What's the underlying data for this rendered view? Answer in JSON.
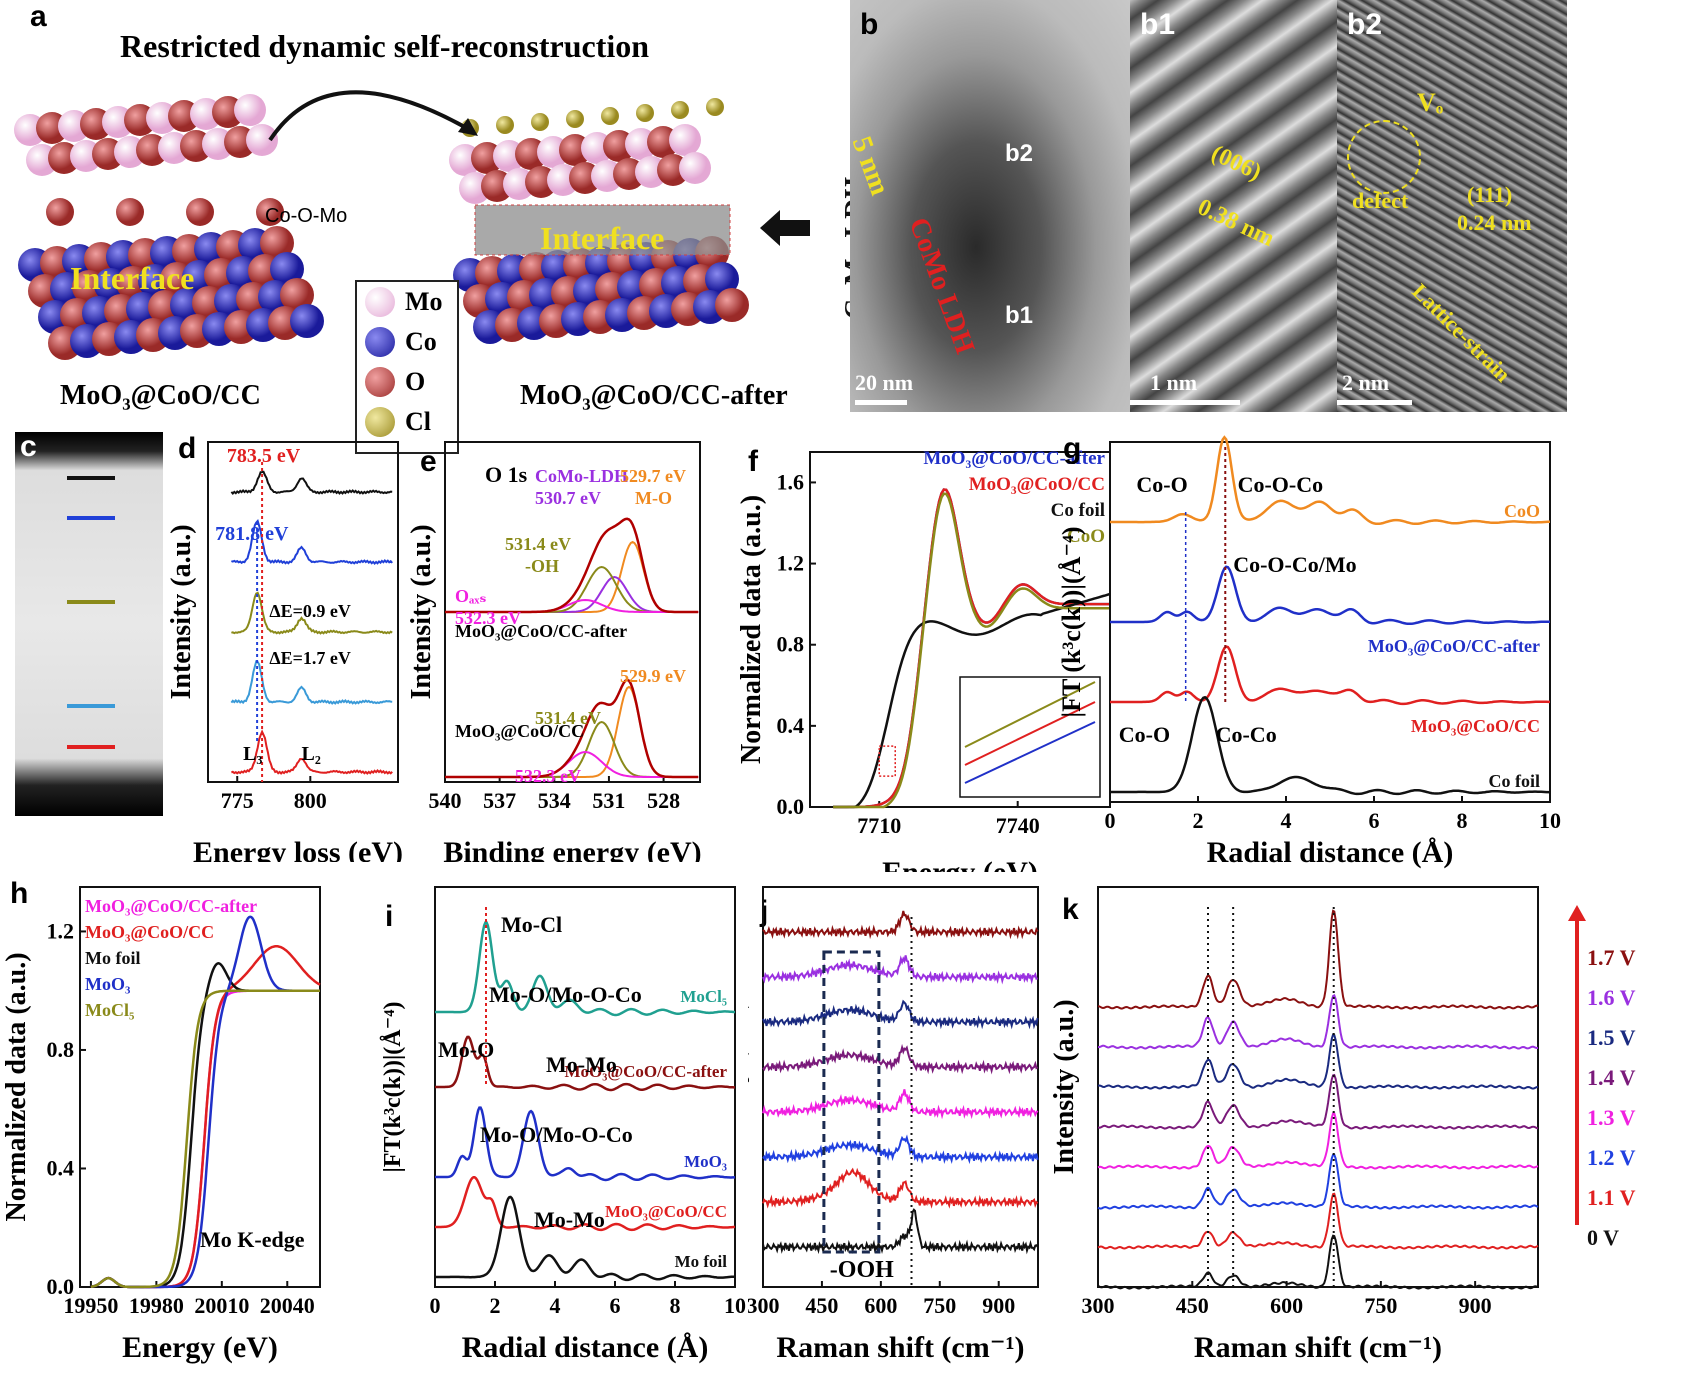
{
  "panel_letters": {
    "a": "a",
    "b": "b",
    "b1": "b1",
    "b2": "b2",
    "c": "c",
    "d": "d",
    "e": "e",
    "f": "f",
    "g": "g",
    "h": "h",
    "i": "i",
    "j": "j",
    "k": "k"
  },
  "panel_a": {
    "title": "Restricted dynamic self-reconstruction",
    "left_label": "MoO₃@CoO/CC",
    "right_label": "MoO₃@CoO/CC-after",
    "interface_left": "Interface",
    "interface_right": "Interface",
    "bond_label": "Co-O-Mo",
    "arrow_label": "CoMo LDH",
    "legend": [
      {
        "label": "Mo",
        "color": "#e8b6d8"
      },
      {
        "label": "Co",
        "color": "#2b2bb8"
      },
      {
        "label": "O",
        "color": "#b8433f"
      },
      {
        "label": "Cl",
        "color": "#b5a43d"
      }
    ]
  },
  "panel_b": {
    "thickness": "5 nm",
    "ldh_label": "CoMo LDH",
    "b1_box": "b1",
    "b2_box": "b2",
    "scale": "20 nm"
  },
  "panel_b1": {
    "plane": "(006)",
    "spacing": "0.38 nm",
    "scale": "1 nm"
  },
  "panel_b2": {
    "vo": "Vₒ",
    "defect": "defect",
    "plane": "(111)",
    "spacing": "0.24 nm",
    "strain": "Lattice-strain",
    "scale": "2 nm"
  },
  "chart_data": [
    {
      "panel": "d",
      "type": "line",
      "xlabel": "Energy loss (eV)",
      "ylabel": "Intensity (a.u.)",
      "xlim": [
        765,
        830
      ],
      "xticks": [
        775,
        800
      ],
      "annotations": [
        "783.5 eV",
        "781.8 eV",
        "ΔE=0.9 eV",
        "ΔE=1.7 eV",
        "L₃",
        "L₂"
      ],
      "series_colors": [
        "#111111",
        "#2040d8",
        "#8a8a1a",
        "#3a9ad8",
        "#e02020"
      ]
    },
    {
      "panel": "e",
      "type": "line",
      "title": "O 1s",
      "xlabel": "Binding energy (eV)",
      "ylabel": "Intensity (a.u.)",
      "xlim": [
        540,
        526
      ],
      "xticks": [
        540,
        537,
        534,
        531,
        528
      ],
      "labels": [
        "MoO₃@CoO/CC-after",
        "MoO₃@CoO/CC"
      ],
      "annotations": [
        "CoMo-LDH",
        "530.7 eV",
        "529.7 eV",
        "M-O",
        "531.4 eV",
        "-OH",
        "Oₐₓₛ",
        "532.3 eV",
        "529.9 eV",
        "531.4 eV",
        "532.3 eV"
      ]
    },
    {
      "panel": "f",
      "type": "line",
      "xlabel": "Energy (eV)",
      "ylabel": "Normalized data (a.u.)",
      "xlim": [
        7695,
        7760
      ],
      "ylim": [
        0.0,
        1.75
      ],
      "xticks": [
        7710,
        7740
      ],
      "yticks": [
        0.0,
        0.4,
        0.8,
        1.2,
        1.6
      ],
      "series": [
        {
          "name": "MoO₃@CoO/CC-after",
          "color": "#2030c8"
        },
        {
          "name": "MoO₃@CoO/CC",
          "color": "#e02020"
        },
        {
          "name": "Co foil",
          "color": "#111111"
        },
        {
          "name": "CoO",
          "color": "#8a8a1a"
        }
      ]
    },
    {
      "panel": "g",
      "type": "line",
      "xlabel": "Radial distance (Å)",
      "ylabel": "|FT (k³c(k))|(Å⁻⁴)",
      "xlim": [
        0,
        10
      ],
      "xticks": [
        0,
        2,
        4,
        6,
        8,
        10
      ],
      "series": [
        {
          "name": "CoO",
          "color": "#f08a20"
        },
        {
          "name": "MoO₃@CoO/CC-after",
          "color": "#2030c8"
        },
        {
          "name": "MoO₃@CoO/CC",
          "color": "#e02020"
        },
        {
          "name": "Co foil",
          "color": "#111111"
        }
      ],
      "annotations": [
        "Co-O",
        "Co-O-Co",
        "Co-O-Co/Mo",
        "Co-O",
        "Co-Co"
      ]
    },
    {
      "panel": "h",
      "type": "line",
      "xlabel": "Energy (eV)",
      "ylabel": "Normalized data (a.u.)",
      "xlim": [
        19945,
        20055
      ],
      "ylim": [
        0.0,
        1.35
      ],
      "xticks": [
        19950,
        19980,
        20010,
        20040
      ],
      "yticks": [
        0.0,
        0.4,
        0.8,
        1.2
      ],
      "series": [
        {
          "name": "MoO₃@CoO/CC-after",
          "color": "#f020e0"
        },
        {
          "name": "MoO₃@CoO/CC",
          "color": "#e02020"
        },
        {
          "name": "Mo foil",
          "color": "#111111"
        },
        {
          "name": "MoO₃",
          "color": "#2030c8"
        },
        {
          "name": "MoCl₅",
          "color": "#8a8a1a"
        }
      ],
      "annotations": [
        "Mo K-edge"
      ]
    },
    {
      "panel": "i",
      "type": "line",
      "xlabel": "Radial distance (Å)",
      "ylabel": "|FT(k³c(k))|(Å⁻⁴)",
      "xlim": [
        0,
        10
      ],
      "xticks": [
        0,
        2,
        4,
        6,
        8,
        10
      ],
      "series": [
        {
          "name": "MoCl₅",
          "color": "#20a090"
        },
        {
          "name": "MoO₃@CoO/CC-after",
          "color": "#8a1010"
        },
        {
          "name": "MoO₃",
          "color": "#2030c8"
        },
        {
          "name": "MoO₃@CoO/CC",
          "color": "#e02020"
        },
        {
          "name": "Mo foil",
          "color": "#111111"
        }
      ],
      "annotations": [
        "Mo-Cl",
        "Mo-O/Mo-O-Co",
        "Mo-O",
        "Mo-Mo",
        "Mo-O/Mo-O-Co",
        "Mo-Mo"
      ]
    },
    {
      "panel": "j",
      "type": "line",
      "xlabel": "Raman shift (cm⁻¹)",
      "ylabel": "Intensity (a.u.)",
      "xlim": [
        300,
        1000
      ],
      "xticks": [
        300,
        450,
        600,
        750,
        900
      ],
      "annotations": [
        "-OOH"
      ],
      "series_colors": [
        "#8a1010",
        "#9a30e0",
        "#1a2a80",
        "#7a1a7a",
        "#f020e0",
        "#2040e0",
        "#e02020",
        "#111111"
      ]
    },
    {
      "panel": "k",
      "type": "line",
      "xlabel": "Raman shift (cm⁻¹)",
      "ylabel": "Intensity (a.u.)",
      "xlim": [
        300,
        1000
      ],
      "xticks": [
        300,
        450,
        600,
        750,
        900
      ],
      "series": [
        {
          "name": "1.7 V",
          "color": "#8a1010"
        },
        {
          "name": "1.6 V",
          "color": "#9a30e0"
        },
        {
          "name": "1.5 V",
          "color": "#1a2a80"
        },
        {
          "name": "1.4 V",
          "color": "#7a1a7a"
        },
        {
          "name": "1.3 V",
          "color": "#f020e0"
        },
        {
          "name": "1.2 V",
          "color": "#2040e0"
        },
        {
          "name": "1.1 V",
          "color": "#e02020"
        },
        {
          "name": "0 V",
          "color": "#111111"
        }
      ]
    }
  ]
}
